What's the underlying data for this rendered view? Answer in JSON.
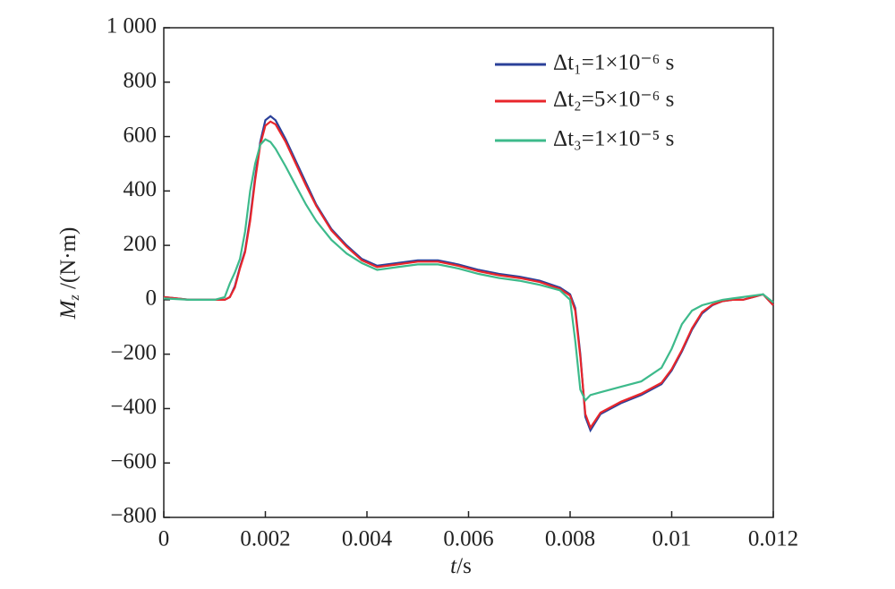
{
  "chart_data": {
    "type": "line",
    "xlabel": [
      "t",
      "/s"
    ],
    "ylabel": [
      "M",
      "z",
      " /(N·m)"
    ],
    "x": [
      0,
      0.0005,
      0.001,
      0.0012,
      0.0013,
      0.0014,
      0.0015,
      0.0016,
      0.0017,
      0.0018,
      0.0019,
      0.002,
      0.0021,
      0.0022,
      0.0024,
      0.0026,
      0.0028,
      0.003,
      0.0033,
      0.0036,
      0.0039,
      0.0042,
      0.0046,
      0.005,
      0.0054,
      0.0058,
      0.0062,
      0.0066,
      0.007,
      0.0074,
      0.0078,
      0.008,
      0.0081,
      0.0082,
      0.0083,
      0.0084,
      0.0086,
      0.009,
      0.0094,
      0.0098,
      0.01,
      0.0102,
      0.0104,
      0.0106,
      0.0108,
      0.011,
      0.0112,
      0.0114,
      0.0116,
      0.0118,
      0.012
    ],
    "series": [
      {
        "name": "Δt₁=1×10⁻⁶ s",
        "color": "#2b4099",
        "values": [
          10,
          0,
          0,
          0,
          10,
          50,
          120,
          180,
          300,
          450,
          580,
          660,
          675,
          660,
          590,
          510,
          430,
          350,
          260,
          200,
          150,
          125,
          135,
          145,
          145,
          130,
          110,
          95,
          85,
          70,
          45,
          20,
          -30,
          -200,
          -430,
          -480,
          -420,
          -380,
          -350,
          -310,
          -260,
          -190,
          -110,
          -50,
          -20,
          -5,
          0,
          0,
          10,
          20,
          -20
        ]
      },
      {
        "name": "Δt₂=5×10⁻⁶ s",
        "color": "#e8262b",
        "values": [
          10,
          0,
          0,
          0,
          10,
          45,
          115,
          175,
          290,
          440,
          570,
          640,
          655,
          645,
          580,
          500,
          420,
          345,
          255,
          195,
          145,
          120,
          130,
          140,
          140,
          125,
          105,
          90,
          80,
          65,
          40,
          15,
          -40,
          -210,
          -420,
          -470,
          -415,
          -375,
          -345,
          -305,
          -255,
          -185,
          -105,
          -45,
          -18,
          -5,
          0,
          0,
          10,
          20,
          -20
        ]
      },
      {
        "name": "Δt₃=1×10⁻⁵ s",
        "color": "#3dba8b",
        "values": [
          5,
          0,
          0,
          10,
          60,
          100,
          150,
          250,
          400,
          500,
          570,
          590,
          580,
          555,
          490,
          420,
          350,
          290,
          220,
          170,
          135,
          110,
          120,
          130,
          130,
          115,
          95,
          80,
          70,
          55,
          35,
          0,
          -150,
          -330,
          -370,
          -350,
          -340,
          -320,
          -300,
          -250,
          -180,
          -90,
          -40,
          -20,
          -10,
          0,
          5,
          10,
          15,
          20,
          -10
        ]
      }
    ],
    "xlim": [
      0,
      0.012
    ],
    "xticks": [
      0,
      0.002,
      0.004,
      0.006,
      0.008,
      0.01,
      0.012
    ],
    "ylim": [
      -800,
      1000
    ],
    "yticks": [
      {
        "value": -800,
        "label": "−800"
      },
      {
        "value": -600,
        "label": "−600"
      },
      {
        "value": -400,
        "label": "−400"
      },
      {
        "value": -200,
        "label": "−200"
      },
      0,
      200,
      400,
      600,
      800,
      {
        "value": 1000,
        "label": "1 000"
      }
    ],
    "legend": "upper right"
  }
}
